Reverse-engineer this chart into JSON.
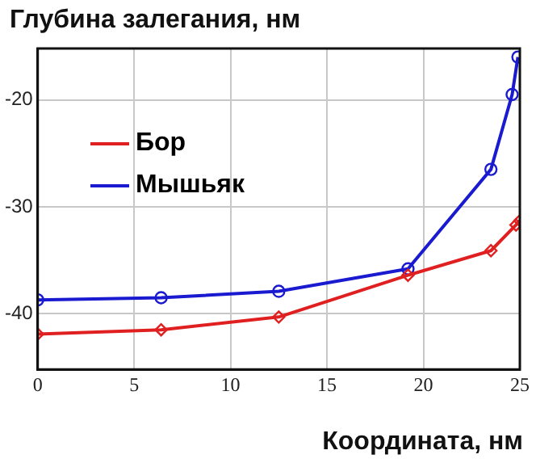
{
  "chart_data": {
    "type": "line",
    "ylabel": "Глубина залегания, нм",
    "xlabel": "Координата, нм",
    "xlim": [
      0,
      25
    ],
    "xticks": [
      0,
      5,
      10,
      15,
      20,
      25
    ],
    "ylim": [
      -45.2,
      -15.2
    ],
    "yticks": [
      -40,
      -30,
      -20
    ],
    "grid": true,
    "legend": "top left",
    "line_style": "solid",
    "series": [
      {
        "name": "Бор",
        "color": "#e02020",
        "marker": "diamond",
        "x": [
          0,
          6.4,
          12.5,
          19.2,
          23.5,
          24.8,
          25
        ],
        "values": [
          -41.9,
          -41.5,
          -40.3,
          -36.4,
          -34.1,
          -31.7,
          -31.3
        ]
      },
      {
        "name": "Мышьяк",
        "color": "#1a1ad0",
        "marker": "circle",
        "x": [
          0,
          6.4,
          12.5,
          19.2,
          23.5,
          24.6,
          24.9
        ],
        "values": [
          -38.7,
          -38.5,
          -37.9,
          -35.8,
          -26.5,
          -19.5,
          -16.0
        ]
      }
    ]
  }
}
